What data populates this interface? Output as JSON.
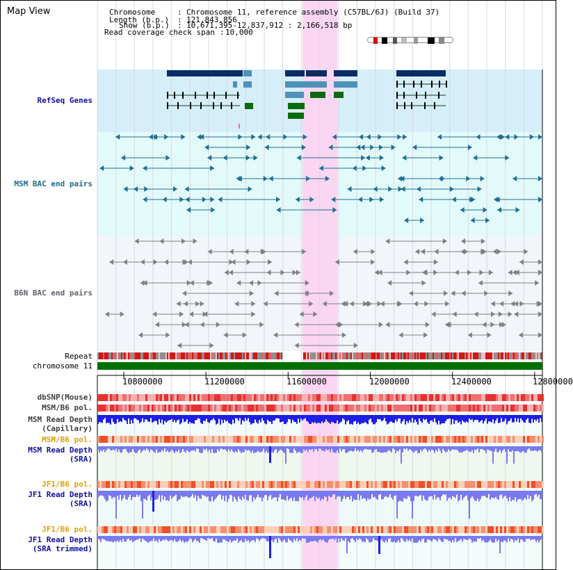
{
  "header": {
    "title": "Map View",
    "chromosome_label": "Chromosome",
    "chromosome_value": "Chromosome 11, reference assembly (C57BL/6J) (Build 37)",
    "length_label": "Length (b.p.)",
    "length_value": "121,843,856",
    "show_label": "Show (b.p.)",
    "show_value": "10,671,395-12,837,912 : 2,166,518 bp",
    "coverage_label": "Read coverage check span",
    "coverage_value": "10,000"
  },
  "view": {
    "start": 10671395,
    "end": 12837912,
    "highlight_start": 11670000,
    "highlight_end": 11840000
  },
  "tracks": {
    "refseq": "RefSeq Genes",
    "msm_bac": "MSM BAC end pairs",
    "b6n_bac": "B6N BAC end pairs",
    "repeat": "Repeat",
    "chromosome": "chromosome 11",
    "dbsnp": "dbSNP(Mouse)",
    "msm_b6_pol": "MSM/B6 pol.",
    "msm_read_depth_cap_1": "MSM Read Depth",
    "msm_read_depth_cap_2": "(Capillary)",
    "msm_b6_pol_sra": "MSM/B6 pol.",
    "msm_read_depth_sra_1": "MSM Read Depth",
    "msm_read_depth_sra_2": "(SRA)",
    "jf1_b6_pol": "JF1/B6 pol.",
    "jf1_read_depth_1": "JF1 Read Depth",
    "jf1_read_depth_2": "(SRA)",
    "jf1_b6_pol_trim": "JF1/B6 pol.",
    "jf1_read_depth_trim_1": "JF1 Read Depth",
    "jf1_read_depth_trim_2": "(SRA trimmed)"
  },
  "axis": {
    "ticks": [
      "10800000",
      "11200000",
      "11600000",
      "12000000",
      "12400000",
      "12800000"
    ]
  },
  "colors": {
    "refseq_bg": "#d5eefa",
    "msm_bg": "#e3fafa",
    "b6n_bg": "#f2f5fa",
    "highlight": "#fad6f3",
    "gene_dark": "#0a2c63",
    "gene_mid": "#4d92b8",
    "gene_green": "#0c6a0c",
    "msm_pair": "#1f6f92",
    "b6n_pair": "#808080",
    "chromosome_bar": "#007000",
    "depth_blue": "#1e1ee6",
    "depth_light": "#7a7af0",
    "label_blue": "#1010a0",
    "label_orange": "#e0a000",
    "label_teal": "#1a6a8a"
  }
}
